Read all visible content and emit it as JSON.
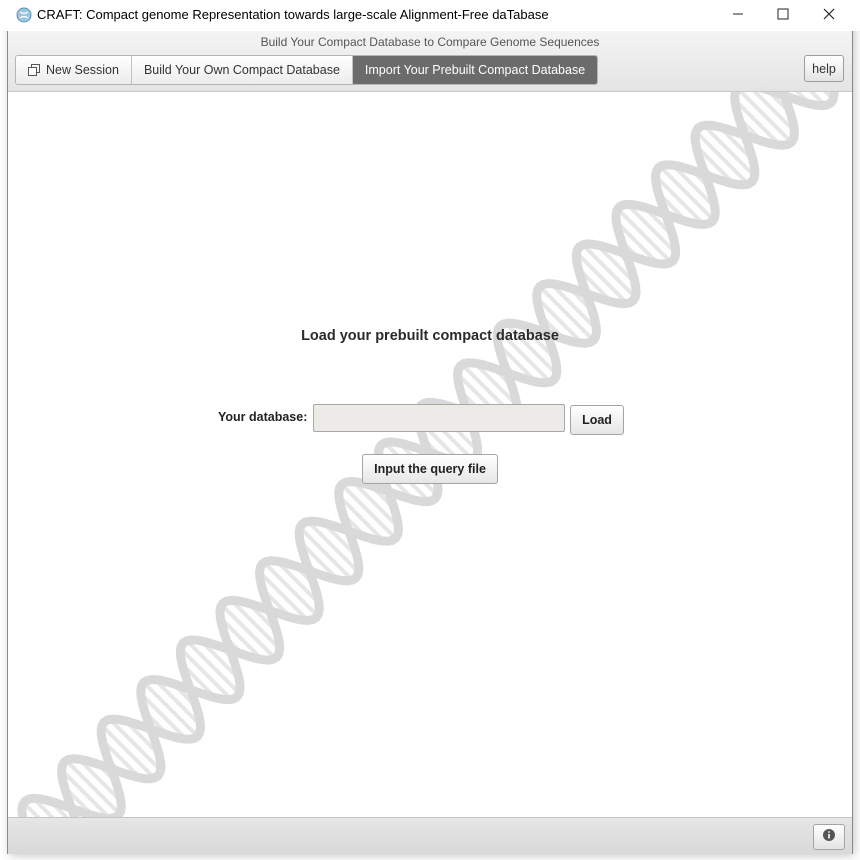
{
  "window": {
    "title": "CRAFT: Compact genome Representation towards large-scale Alignment-Free daTabase",
    "icon": "craft-app-icon"
  },
  "toolbar": {
    "subtitle": "Build Your Compact Database to Compare Genome Sequences",
    "tabs": [
      {
        "label": "New Session",
        "icon": "new-session-icon",
        "active": false
      },
      {
        "label": "Build Your Own Compact Database",
        "active": false
      },
      {
        "label": "Import Your Prebuilt Compact Database",
        "active": true
      }
    ],
    "help_label": "help"
  },
  "main": {
    "heading": "Load your prebuilt compact database",
    "database_label": "Your database:",
    "database_value": "",
    "load_label": "Load",
    "query_label": "Input the query file",
    "background": "dna-helix-watermark"
  },
  "statusbar": {
    "info_icon": "info-icon"
  },
  "colors": {
    "active_tab": "#6b6b6b",
    "input_bg": "#ecebe8",
    "helix": "#d9d9d9"
  }
}
